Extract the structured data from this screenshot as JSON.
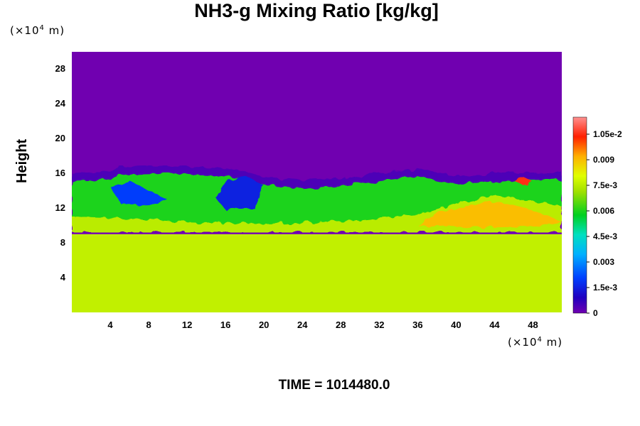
{
  "chart_data": {
    "type": "heatmap",
    "title": "NH3-g Mixing Ratio [kg/kg]",
    "ylabel": "Height",
    "xlabel": "",
    "x_unit_label": "(×10⁴ m)",
    "y_unit_label": "(×10⁴ m)",
    "x_ticks": [
      "4",
      "8",
      "12",
      "16",
      "20",
      "24",
      "28",
      "32",
      "36",
      "40",
      "44",
      "48"
    ],
    "y_ticks": [
      "4",
      "8",
      "12",
      "16",
      "20",
      "24",
      "28"
    ],
    "xlim": [
      0,
      51
    ],
    "ylim": [
      0,
      30
    ],
    "colorbar": {
      "ticks": [
        "0",
        "1.5e-3",
        "0.003",
        "4.5e-3",
        "0.006",
        "7.5e-3",
        "0.009",
        "1.05e-2"
      ],
      "range": [
        0,
        0.0115
      ]
    },
    "field_summary": {
      "below_height": 9,
      "lower_layer_value": 0.0076,
      "above_cloud_value": 0.0,
      "cloud_top_height": 16.5,
      "cloud_band_values": [
        0.0004,
        0.006,
        0.009
      ]
    },
    "footer": "TIME = 1014480.0"
  }
}
